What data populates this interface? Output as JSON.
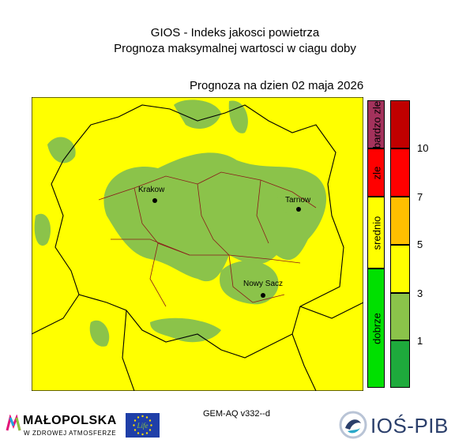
{
  "header": {
    "title": "GIOS - Indeks jakosci powietrza",
    "subtitle": "Prognoza maksymalnej wartosci w ciagu doby",
    "forecast_date": "Prognoza na dzien  02 maja 2026"
  },
  "map": {
    "background_color": "#ffff00",
    "patch_color": "#8bc34a",
    "border_color": "#000000",
    "district_border_color": "#8b1a1a",
    "cities": [
      {
        "name": "Krakow"
      },
      {
        "name": "Tarnow"
      },
      {
        "name": "Nowy Sacz"
      }
    ]
  },
  "legend": {
    "quality_classes": [
      {
        "label": "bardzo zle",
        "color": "#a3325c"
      },
      {
        "label": "zle",
        "color": "#ff0000"
      },
      {
        "label": "srednio",
        "color": "#ffff00"
      },
      {
        "label": "dobrze",
        "color": "#00e000"
      }
    ],
    "scale_colors": [
      "#c00000",
      "#ff0000",
      "#ffbf00",
      "#ffff00",
      "#8bc34a",
      "#1eaa3c"
    ],
    "ticks": [
      "10",
      "7",
      "5",
      "3",
      "1"
    ]
  },
  "footer": {
    "model": "GEM-AQ v332--d",
    "malopolska_name": "MAŁOPOLSKA",
    "malopolska_tagline": "W ZDROWEJ ATMOSFERZE",
    "eu_text": "Life",
    "ios_name": "IOŚ-PIB"
  }
}
